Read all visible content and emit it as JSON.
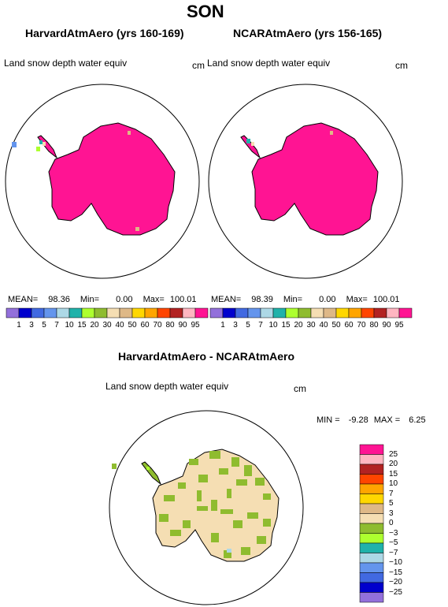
{
  "title": "SON",
  "units": "cm",
  "variable": "Land snow depth water equiv",
  "panels": [
    {
      "title": "HarvardAtmAero (yrs 160-169)",
      "variable": "Land snow depth water equiv",
      "units": "cm",
      "mean": "98.36",
      "min": "0.00",
      "max": "100.01",
      "mean_label": "MEAN=",
      "min_label": "Min=",
      "max_label": "Max="
    },
    {
      "title": "NCARAtmAero (yrs 156-165)",
      "variable": "Land snow depth water equiv",
      "units": "cm",
      "mean": "98.39",
      "min": "0.00",
      "max": "100.01",
      "mean_label": "MEAN=",
      "min_label": "Min=",
      "max_label": "Max="
    },
    {
      "title": "HarvardAtmAero - NCARAtmAero",
      "variable": "Land snow depth water equiv",
      "units": "cm",
      "min_label": "MIN =",
      "min": "-9.28",
      "max_label": "MAX =",
      "max": "6.25"
    }
  ],
  "colorbar_top": {
    "labels": [
      "1",
      "3",
      "5",
      "7",
      "10",
      "15",
      "20",
      "30",
      "40",
      "50",
      "60",
      "70",
      "80",
      "90",
      "95"
    ],
    "colors": [
      "#9370db",
      "#0000cd",
      "#4169e1",
      "#6495ed",
      "#add8e6",
      "#20b2aa",
      "#adff2f",
      "#8fbc2f",
      "#f5deb3",
      "#deb887",
      "#ffd700",
      "#ffa500",
      "#ff4500",
      "#b22222",
      "#ffb6c1",
      "#ff1493"
    ]
  },
  "colorbar_diff": {
    "labels": [
      "25",
      "20",
      "15",
      "10",
      "7",
      "5",
      "3",
      "0",
      "−3",
      "−5",
      "−7",
      "−10",
      "−15",
      "−20",
      "−25"
    ],
    "colors": [
      "#ff1493",
      "#ffb6c1",
      "#b22222",
      "#ff4500",
      "#ffa500",
      "#ffd700",
      "#deb887",
      "#f5deb3",
      "#8fbc2f",
      "#adff2f",
      "#20b2aa",
      "#add8e6",
      "#6495ed",
      "#4169e1",
      "#0000cd",
      "#9370db"
    ]
  },
  "chart_data": [
    {
      "type": "heatmap",
      "title": "HarvardAtmAero (yrs 160-169)",
      "xlabel": "",
      "ylabel": "",
      "field": "Land snow depth water equiv",
      "units": "cm",
      "region": "Antarctica (south polar stereographic)",
      "mean": 98.36,
      "min": 0.0,
      "max": 100.01
    },
    {
      "type": "heatmap",
      "title": "NCARAtmAero (yrs 156-165)",
      "xlabel": "",
      "ylabel": "",
      "field": "Land snow depth water equiv",
      "units": "cm",
      "region": "Antarctica (south polar stereographic)",
      "mean": 98.39,
      "min": 0.0,
      "max": 100.01
    },
    {
      "type": "heatmap",
      "title": "HarvardAtmAero - NCARAtmAero",
      "xlabel": "",
      "ylabel": "",
      "field": "Land snow depth water equiv",
      "units": "cm",
      "region": "Antarctica (south polar stereographic)",
      "min": -9.28,
      "max": 6.25
    }
  ]
}
